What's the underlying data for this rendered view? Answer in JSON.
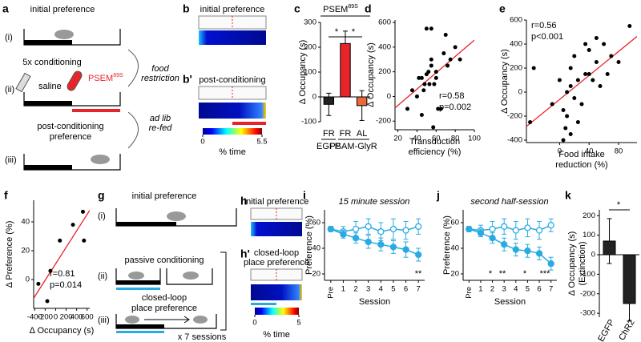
{
  "diagrams": {
    "a": {
      "panel": "a",
      "initial": "initial preference",
      "steps": [
        "(i)",
        "(ii)",
        "(iii)"
      ],
      "conditioning": "5x conditioning",
      "food_restriction": [
        "food",
        "restriction"
      ],
      "saline": "saline",
      "psem": {
        "base": "PSEM",
        "sup": "89S"
      },
      "re_fed": [
        "ad lib",
        "re-fed"
      ],
      "post": [
        "post-conditioning",
        "preference"
      ]
    },
    "b": {
      "panel": "b",
      "panel2": "b'",
      "initial": "initial preference",
      "post": "post-conditioning",
      "colorbar_ticks": [
        0,
        5.5
      ],
      "colorbar_label": "% time"
    },
    "g": {
      "panel": "g",
      "initial": "initial preference",
      "steps": [
        "(i)",
        "(ii)",
        "(iii)"
      ],
      "passive": "passive conditioning",
      "closed": [
        "closed-loop",
        "place preference"
      ],
      "sessions": "x 7 sessions"
    },
    "h": {
      "panel": "h",
      "panel2": "h'",
      "initial": "initial preference",
      "closed": [
        "closed-loop",
        "place preference"
      ],
      "colorbar_ticks": [
        0,
        5
      ],
      "colorbar_label": "% time"
    }
  },
  "chart_data": [
    {
      "type": "bar",
      "panel": "c",
      "title": {
        "base": "PSEM",
        "sup": "89S"
      },
      "ylabel": "Δ Occupancy (s)",
      "categories": [
        "FR",
        "FR",
        "AL"
      ],
      "groups": [
        "EGFP",
        "PSAM-GlyR"
      ],
      "values": [
        -30,
        215,
        -35
      ],
      "errors": [
        45,
        50,
        60
      ],
      "colors": [
        "#222222",
        "#e8242a",
        "#e86a3a"
      ],
      "ylim": [
        -100,
        300
      ],
      "yticks": [
        -100,
        0,
        100,
        200,
        300
      ],
      "significance": [
        "*",
        "*"
      ]
    },
    {
      "type": "scatter",
      "panel": "d",
      "ylabel": "Δ Occupancy (s)",
      "xlabel": [
        "Transduction",
        "efficiency (%)"
      ],
      "x": [
        30,
        35,
        40,
        42,
        45,
        47,
        48,
        50,
        50,
        52,
        53,
        55,
        55,
        57,
        58,
        60,
        60,
        62,
        65,
        68,
        70,
        72,
        75,
        80,
        85,
        45,
        55
      ],
      "values": [
        -100,
        50,
        0,
        150,
        150,
        50,
        100,
        180,
        550,
        200,
        100,
        550,
        300,
        -250,
        100,
        150,
        200,
        -100,
        -100,
        350,
        500,
        250,
        300,
        400,
        300,
        -150,
        250
      ],
      "xlim": [
        17,
        100
      ],
      "xticks": [
        20,
        40,
        60,
        80,
        100
      ],
      "ylim": [
        -270,
        620
      ],
      "yticks": [
        -200,
        0,
        200,
        400,
        600
      ],
      "fit_color": "#e8242a",
      "annotations": [
        "r=0.58",
        "p=0.002"
      ]
    },
    {
      "type": "scatter",
      "panel": "e",
      "ylabel": "Δ Occupancy (s)",
      "xlabel": [
        "Food intake",
        "reduction (%)"
      ],
      "x": [
        -40,
        -35,
        -10,
        0,
        5,
        5,
        8,
        10,
        10,
        15,
        15,
        20,
        20,
        25,
        30,
        35,
        35,
        40,
        40,
        45,
        50,
        50,
        55,
        60,
        65,
        70,
        80,
        95,
        15,
        25
      ],
      "values": [
        -250,
        200,
        -100,
        100,
        -150,
        -400,
        -300,
        0,
        -200,
        50,
        200,
        -50,
        300,
        100,
        -100,
        400,
        150,
        150,
        350,
        100,
        250,
        450,
        50,
        400,
        150,
        300,
        250,
        550,
        -350,
        -250
      ],
      "xlim": [
        -45,
        105
      ],
      "xticks": [
        0,
        40,
        80
      ],
      "ylim": [
        -420,
        600
      ],
      "yticks": [
        -400,
        -200,
        0,
        200,
        400,
        600
      ],
      "fit_color": "#e8242a",
      "annotations": [
        "r=0.56",
        "p<0.001"
      ]
    },
    {
      "type": "scatter",
      "panel": "f",
      "ylabel": "Δ Preference (%)",
      "xlabel": "Δ Occupancy (s)",
      "x": [
        -330,
        -160,
        -100,
        80,
        330,
        520,
        540
      ],
      "values": [
        -3,
        -15,
        6,
        27,
        38,
        47,
        27
      ],
      "xlim": [
        -420,
        650
      ],
      "xticks": [
        -400,
        -200,
        0,
        200,
        400,
        600
      ],
      "ylim": [
        -20,
        55
      ],
      "yticks": [
        0,
        20,
        40
      ],
      "fit_color": "#e8242a",
      "annotations": [
        "r=0.81",
        "p=0.014"
      ]
    },
    {
      "type": "line",
      "panel": "i",
      "title": "15 minute session",
      "ylabel": "Preference (%)",
      "xlabel": "Session",
      "categories": [
        "Pre",
        "1",
        "2",
        "3",
        "4",
        "5",
        "6",
        "7"
      ],
      "series": [
        {
          "color": "#29abe2",
          "marker": "open",
          "values": [
            55,
            53,
            55,
            57,
            53,
            55,
            54,
            57
          ],
          "errors": [
            2,
            4,
            6,
            6,
            7,
            8,
            7,
            6
          ]
        },
        {
          "color": "#29abe2",
          "marker": "filled",
          "values": [
            55,
            51,
            48,
            45,
            43,
            41,
            39,
            35
          ],
          "errors": [
            2,
            3,
            4,
            5,
            5,
            5,
            6,
            5
          ]
        }
      ],
      "ylim": [
        15,
        70
      ],
      "yticks": [
        20,
        40,
        60
      ],
      "significance": [
        "**"
      ]
    },
    {
      "type": "line",
      "panel": "j",
      "title": "second half-session",
      "ylabel": "Preference (%)",
      "xlabel": "Session",
      "categories": [
        "Pre",
        "1",
        "2",
        "3",
        "4",
        "5",
        "6",
        "7"
      ],
      "series": [
        {
          "color": "#29abe2",
          "marker": "open",
          "values": [
            55,
            54,
            55,
            57,
            54,
            56,
            54,
            58
          ],
          "errors": [
            2,
            4,
            6,
            6,
            7,
            7,
            7,
            5
          ]
        },
        {
          "color": "#29abe2",
          "marker": "filled",
          "values": [
            55,
            52,
            48,
            43,
            39,
            38,
            36,
            28
          ],
          "errors": [
            2,
            3,
            4,
            5,
            5,
            5,
            5,
            5
          ]
        }
      ],
      "ylim": [
        15,
        70
      ],
      "yticks": [
        20,
        40,
        60
      ],
      "significance": [
        "*",
        "**",
        "*",
        "***"
      ]
    },
    {
      "type": "bar",
      "panel": "k",
      "ylabel": [
        "Δ Occupancy (s)",
        "(Extinction)"
      ],
      "categories": [
        "EGFP",
        "ChR2"
      ],
      "values": [
        70,
        -250
      ],
      "errors": [
        115,
        90
      ],
      "colors": [
        "#222222",
        "#222222"
      ],
      "ylim": [
        -320,
        230
      ],
      "yticks": [
        -300,
        -200,
        -100,
        0,
        100,
        200
      ],
      "significance": [
        "*"
      ]
    }
  ]
}
